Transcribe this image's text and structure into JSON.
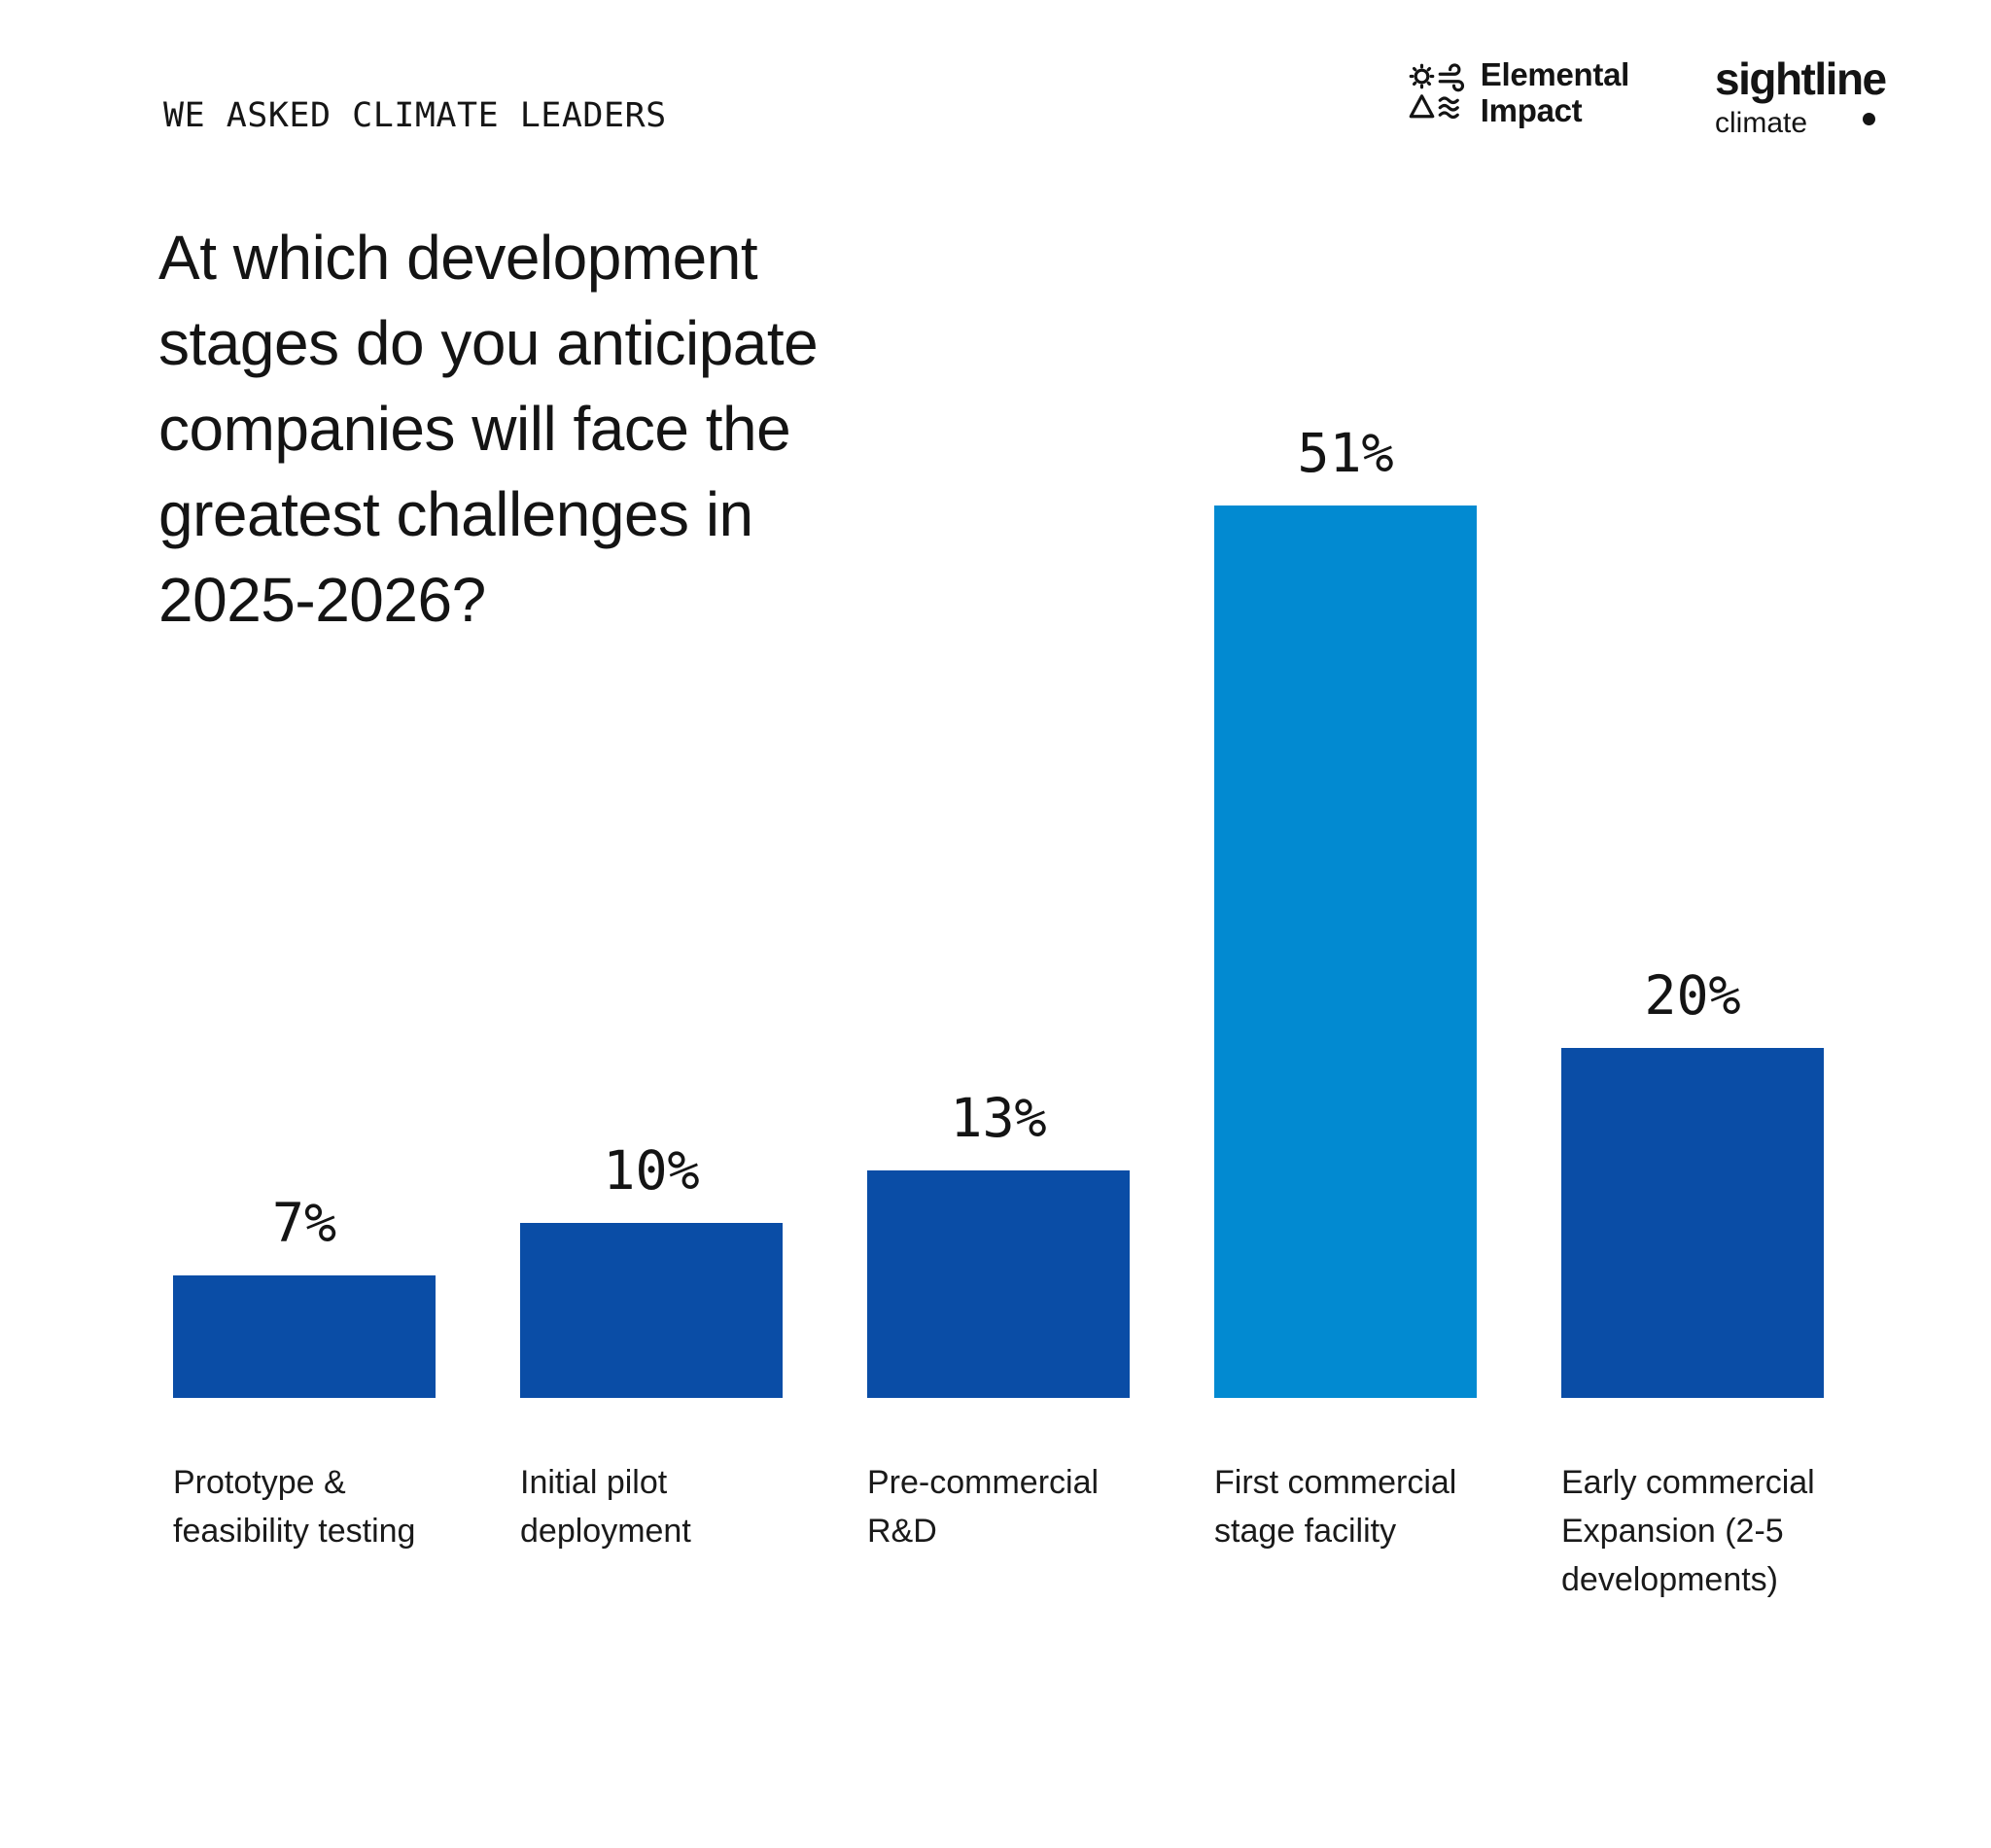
{
  "page": {
    "eyebrow": "WE ASKED CLIMATE LEADERS",
    "title": "At which development\nstages do you anticipate\ncompanies will face the\ngreatest challenges in\n2025-2026?"
  },
  "logos": {
    "elemental_impact": {
      "name_line1": "Elemental",
      "name_line2": "Impact",
      "icon": "elemental-impact-icon"
    },
    "sightline_climate": {
      "wordmark": "sightline",
      "subtext": "climate",
      "icon": "sightline-dot"
    }
  },
  "colors": {
    "bar_default": "#0A4DA6",
    "bar_highlight": "#028AD1",
    "text": "#141414",
    "background": "#FFFFFF"
  },
  "chart_data": {
    "type": "bar",
    "title": "At which development stages do you anticipate companies will face the greatest challenges in 2025-2026?",
    "categories": [
      "Prototype &\nfeasibility testing",
      "Initial pilot\ndeployment",
      "Pre-commercial\nR&D",
      "First commercial\nstage facility",
      "Early commercial\nExpansion (2-5\ndevelopments)"
    ],
    "values": [
      7,
      10,
      13,
      51,
      20
    ],
    "value_labels": [
      "7%",
      "10%",
      "13%",
      "51%",
      "20%"
    ],
    "highlight_index": 3,
    "bar_colors": [
      "#0A4DA6",
      "#0A4DA6",
      "#0A4DA6",
      "#028AD1",
      "#0A4DA6"
    ],
    "unit": "%",
    "ylim": [
      0,
      51
    ],
    "xlabel": "",
    "ylabel": "",
    "grid": false,
    "legend": false,
    "value_label_position": "above-bar"
  }
}
